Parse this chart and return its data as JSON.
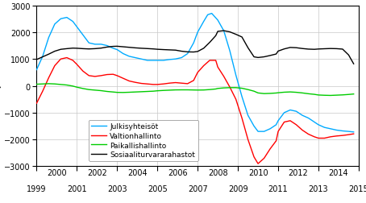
{
  "ylim": [
    -3000,
    3000
  ],
  "xlim": [
    1999.0,
    2015.0
  ],
  "yticks": [
    -3000,
    -2000,
    -1000,
    0,
    1000,
    2000,
    3000
  ],
  "xticks_odd": [
    1999,
    2001,
    2003,
    2005,
    2007,
    2009,
    2011,
    2013,
    2015
  ],
  "xticks_even": [
    2000,
    2002,
    2004,
    2006,
    2008,
    2010,
    2012,
    2014
  ],
  "colors": {
    "Julkisyhteisöt": "#00AAFF",
    "Valtionhallinto": "#FF0000",
    "Paikallishallinto": "#00CC00",
    "Sosiaaliturvararahastot": "#000000"
  },
  "series": {
    "Julkisyhteisöt": {
      "x": [
        1999.0,
        1999.3,
        1999.6,
        1999.9,
        2000.2,
        2000.5,
        2000.8,
        2001.0,
        2001.3,
        2001.6,
        2001.9,
        2002.2,
        2002.5,
        2002.8,
        2003.0,
        2003.3,
        2003.6,
        2003.9,
        2004.2,
        2004.5,
        2004.8,
        2005.0,
        2005.3,
        2005.6,
        2005.9,
        2006.2,
        2006.5,
        2006.8,
        2007.0,
        2007.3,
        2007.5,
        2007.7,
        2008.0,
        2008.3,
        2008.6,
        2008.9,
        2009.2,
        2009.5,
        2009.8,
        2010.0,
        2010.3,
        2010.6,
        2010.9,
        2011.0,
        2011.3,
        2011.6,
        2011.9,
        2012.2,
        2012.5,
        2012.8,
        2013.0,
        2013.3,
        2013.6,
        2013.9,
        2014.2,
        2014.5,
        2014.75
      ],
      "y": [
        600,
        1100,
        1800,
        2300,
        2500,
        2550,
        2400,
        2200,
        1900,
        1600,
        1550,
        1550,
        1500,
        1400,
        1350,
        1200,
        1100,
        1050,
        1000,
        950,
        950,
        950,
        950,
        980,
        1000,
        1050,
        1200,
        1600,
        2000,
        2400,
        2650,
        2700,
        2450,
        2050,
        1300,
        400,
        -400,
        -1100,
        -1500,
        -1700,
        -1700,
        -1600,
        -1450,
        -1300,
        -1000,
        -900,
        -950,
        -1100,
        -1200,
        -1350,
        -1450,
        -1550,
        -1600,
        -1650,
        -1680,
        -1700,
        -1720
      ]
    },
    "Valtionhallinto": {
      "x": [
        1999.0,
        1999.3,
        1999.6,
        1999.9,
        2000.2,
        2000.5,
        2000.8,
        2001.0,
        2001.3,
        2001.6,
        2001.9,
        2002.2,
        2002.5,
        2002.8,
        2003.0,
        2003.3,
        2003.6,
        2003.9,
        2004.2,
        2004.5,
        2004.8,
        2005.0,
        2005.3,
        2005.6,
        2005.9,
        2006.2,
        2006.5,
        2006.8,
        2007.0,
        2007.3,
        2007.6,
        2007.9,
        2008.0,
        2008.3,
        2008.6,
        2008.9,
        2009.2,
        2009.5,
        2009.8,
        2010.0,
        2010.3,
        2010.6,
        2010.9,
        2011.0,
        2011.3,
        2011.6,
        2011.9,
        2012.2,
        2012.5,
        2012.8,
        2013.0,
        2013.3,
        2013.6,
        2013.9,
        2014.2,
        2014.5,
        2014.75
      ],
      "y": [
        -650,
        -200,
        300,
        750,
        1000,
        1050,
        950,
        800,
        550,
        380,
        350,
        380,
        420,
        430,
        380,
        280,
        180,
        130,
        90,
        70,
        50,
        50,
        70,
        100,
        120,
        100,
        80,
        200,
        500,
        750,
        950,
        950,
        700,
        350,
        -50,
        -500,
        -1200,
        -2000,
        -2650,
        -2900,
        -2700,
        -2350,
        -2050,
        -1700,
        -1350,
        -1300,
        -1450,
        -1650,
        -1800,
        -1900,
        -1950,
        -1950,
        -1900,
        -1870,
        -1850,
        -1820,
        -1790
      ]
    },
    "Paikallishallinto": {
      "x": [
        1999.0,
        1999.3,
        1999.6,
        1999.9,
        2000.2,
        2000.5,
        2000.8,
        2001.0,
        2001.3,
        2001.6,
        2001.9,
        2002.2,
        2002.5,
        2002.8,
        2003.0,
        2003.3,
        2003.6,
        2003.9,
        2004.2,
        2004.5,
        2004.8,
        2005.0,
        2005.3,
        2005.6,
        2005.9,
        2006.2,
        2006.5,
        2006.8,
        2007.0,
        2007.3,
        2007.6,
        2007.9,
        2008.0,
        2008.3,
        2008.6,
        2008.9,
        2009.2,
        2009.5,
        2009.8,
        2010.0,
        2010.3,
        2010.6,
        2010.9,
        2011.0,
        2011.3,
        2011.6,
        2011.9,
        2012.2,
        2012.5,
        2012.8,
        2013.0,
        2013.3,
        2013.6,
        2013.9,
        2014.2,
        2014.5,
        2014.75
      ],
      "y": [
        60,
        70,
        80,
        70,
        50,
        30,
        -10,
        -50,
        -100,
        -140,
        -160,
        -180,
        -210,
        -230,
        -245,
        -248,
        -240,
        -230,
        -220,
        -210,
        -200,
        -185,
        -172,
        -162,
        -152,
        -150,
        -150,
        -155,
        -158,
        -155,
        -140,
        -118,
        -98,
        -78,
        -68,
        -68,
        -90,
        -140,
        -200,
        -265,
        -290,
        -282,
        -268,
        -258,
        -238,
        -228,
        -242,
        -265,
        -295,
        -318,
        -342,
        -352,
        -358,
        -348,
        -338,
        -322,
        -305
      ]
    },
    "Sosiaaliturvararahastot": {
      "x": [
        1999.0,
        1999.3,
        1999.6,
        1999.9,
        2000.2,
        2000.5,
        2000.8,
        2001.0,
        2001.3,
        2001.6,
        2001.9,
        2002.2,
        2002.5,
        2002.8,
        2003.0,
        2003.3,
        2003.6,
        2003.9,
        2004.2,
        2004.5,
        2004.8,
        2005.0,
        2005.3,
        2005.6,
        2005.9,
        2006.2,
        2006.5,
        2006.8,
        2007.0,
        2007.3,
        2007.6,
        2007.9,
        2008.0,
        2008.3,
        2008.6,
        2008.9,
        2009.2,
        2009.5,
        2009.8,
        2010.0,
        2010.3,
        2010.6,
        2010.9,
        2011.0,
        2011.3,
        2011.6,
        2011.9,
        2012.2,
        2012.5,
        2012.8,
        2013.0,
        2013.3,
        2013.6,
        2013.9,
        2014.2,
        2014.5,
        2014.75
      ],
      "y": [
        980,
        1080,
        1180,
        1290,
        1360,
        1385,
        1405,
        1400,
        1385,
        1375,
        1385,
        1405,
        1445,
        1470,
        1475,
        1455,
        1435,
        1415,
        1400,
        1388,
        1375,
        1362,
        1350,
        1340,
        1330,
        1290,
        1265,
        1260,
        1280,
        1400,
        1620,
        1870,
        2030,
        2055,
        2010,
        1920,
        1820,
        1420,
        1080,
        1055,
        1080,
        1130,
        1185,
        1295,
        1375,
        1430,
        1420,
        1390,
        1368,
        1360,
        1372,
        1382,
        1390,
        1385,
        1368,
        1150,
        820
      ]
    }
  },
  "legend_entries": [
    "Julkisyhteisöt",
    "Valtionhallinto",
    "Paikallishallinto",
    "Sosiaaliturvararahastot"
  ],
  "background_color": "#ffffff",
  "grid_color": "#C8C8C8"
}
